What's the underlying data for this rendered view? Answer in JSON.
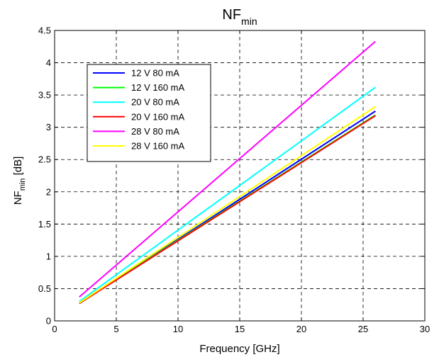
{
  "chart_data": {
    "type": "line",
    "title": "NF",
    "title_sub": "min",
    "xlabel": "Frequency [GHz]",
    "ylabel": "NF",
    "ylabel_sub": "min",
    "ylabel_unit": " [dB]",
    "xlim": [
      0,
      30
    ],
    "ylim": [
      0,
      4.5
    ],
    "xticks": [
      0,
      5,
      10,
      15,
      20,
      25,
      30
    ],
    "yticks": [
      0,
      0.5,
      1,
      1.5,
      2,
      2.5,
      3,
      3.5,
      4,
      4.5
    ],
    "xtick_labels": [
      "0",
      "5",
      "10",
      "15",
      "20",
      "25",
      "30"
    ],
    "ytick_labels": [
      "0",
      "0.5",
      "1",
      "1.5",
      "2",
      "2.5",
      "3",
      "3.5",
      "4",
      "4.5"
    ],
    "grid": true,
    "legend_position": "top-left",
    "series": [
      {
        "name": "12 V 80 mA",
        "color": "#0000ff",
        "x": [
          2,
          26
        ],
        "y": [
          0.27,
          3.25
        ]
      },
      {
        "name": "12 V 160 mA",
        "color": "#00ff00",
        "x": [
          2,
          26
        ],
        "y": [
          0.28,
          3.19
        ]
      },
      {
        "name": "20 V 80 mA",
        "color": "#00ffff",
        "x": [
          2,
          26
        ],
        "y": [
          0.3,
          3.62
        ]
      },
      {
        "name": "20 V 160 mA",
        "color": "#ff0000",
        "x": [
          2,
          26
        ],
        "y": [
          0.27,
          3.18
        ]
      },
      {
        "name": "28 V 80 mA",
        "color": "#ff00ff",
        "x": [
          2,
          26
        ],
        "y": [
          0.37,
          4.33
        ]
      },
      {
        "name": "28 V 160 mA",
        "color": "#ffff00",
        "x": [
          2,
          26
        ],
        "y": [
          0.28,
          3.32
        ]
      }
    ]
  }
}
